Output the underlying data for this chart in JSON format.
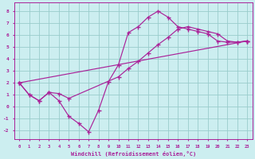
{
  "xlabel": "Windchill (Refroidissement éolien,°C)",
  "xlim": [
    -0.5,
    23.5
  ],
  "ylim": [
    -2.7,
    8.7
  ],
  "xticks": [
    0,
    1,
    2,
    3,
    4,
    5,
    6,
    7,
    8,
    9,
    10,
    11,
    12,
    13,
    14,
    15,
    16,
    17,
    18,
    19,
    20,
    21,
    22,
    23
  ],
  "yticks": [
    -2,
    -1,
    0,
    1,
    2,
    3,
    4,
    5,
    6,
    7,
    8
  ],
  "bg_color": "#cceef0",
  "line_color": "#aa2299",
  "grid_color": "#99cccc",
  "line1_x": [
    0,
    1,
    2,
    3,
    4,
    5,
    6,
    7,
    8,
    9,
    10,
    11,
    12,
    13,
    14,
    15,
    16,
    17,
    18,
    19,
    20,
    21,
    22,
    23
  ],
  "line1_y": [
    2.0,
    1.0,
    0.5,
    1.2,
    0.5,
    -0.8,
    -1.4,
    -2.1,
    -0.3,
    2.1,
    3.5,
    6.2,
    6.7,
    7.5,
    8.0,
    7.5,
    6.7,
    6.5,
    6.3,
    6.1,
    5.5,
    5.4,
    5.4,
    5.5
  ],
  "line2_x": [
    0,
    1,
    2,
    3,
    4,
    5,
    10,
    11,
    12,
    13,
    14,
    15,
    16,
    17,
    18,
    19,
    20,
    21,
    22,
    23
  ],
  "line2_y": [
    2.0,
    1.0,
    0.5,
    1.2,
    1.1,
    0.7,
    2.5,
    3.2,
    3.8,
    4.5,
    5.2,
    5.8,
    6.5,
    6.7,
    6.5,
    6.3,
    6.1,
    5.5,
    5.4,
    5.5
  ],
  "line3_x": [
    0,
    23
  ],
  "line3_y": [
    2.0,
    5.5
  ]
}
